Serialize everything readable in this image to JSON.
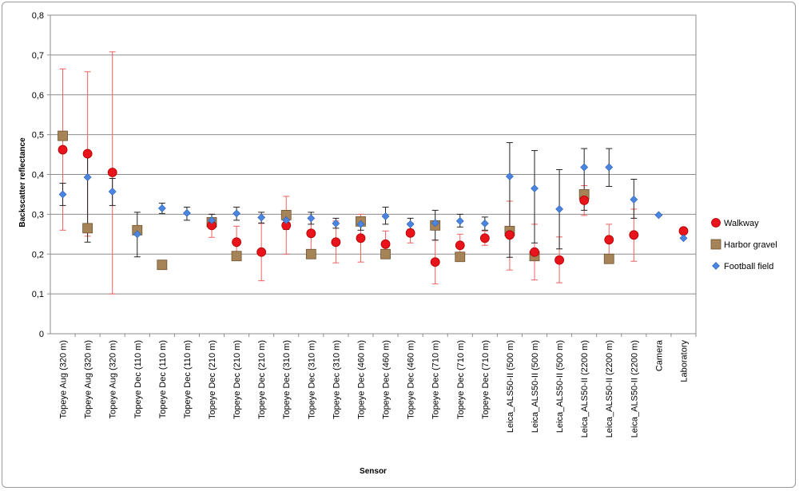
{
  "chart_data": {
    "type": "scatter",
    "xlabel": "Sensor",
    "ylabel": "Backscatter reflectance",
    "ylim": [
      0,
      0.8
    ],
    "yticks": [
      "0",
      "0,1",
      "0,2",
      "0,3",
      "0,4",
      "0,5",
      "0,6",
      "0,7",
      "0,8"
    ],
    "grid": "horizontal",
    "legend_position": "right",
    "categories": [
      "Topeye Aug (320 m)",
      "Topeye Aug (320 m)",
      "Topeye Aug (320 m)",
      "Topeye Dec (110 m)",
      "Topeye Dec (110 m)",
      "Topeye Dec (110 m)",
      "Topeye Dec (210 m)",
      "Topeye Dec (210 m)",
      "Topeye Dec (210 m)",
      "Topeye Dec (310 m)",
      "Topeye Dec (310 m)",
      "Topeye Dec (310 m)",
      "Topeye Dec (460 m)",
      "Topeye Dec (460 m)",
      "Topeye Dec (460 m)",
      "Topeye Dec (710 m)",
      "Topeye Dec (710 m)",
      "Topeye Dec (710 m)",
      "Leica_ALS50-II (500 m)",
      "Leica_ALS50-II (500 m)",
      "Leica_ALS50-II (500 m)",
      "Leica_ALS50-II (2200 m)",
      "Leica_ALS50-II (2200 m)",
      "Leica_ALS50-II (2200 m)",
      "Camera",
      "Laboratory"
    ],
    "series": [
      {
        "name": "Walkway",
        "marker": "circle",
        "color": "#e8131b",
        "error_color": "#f06060",
        "points": [
          {
            "i": 0,
            "y": 0.462,
            "lo": 0.26,
            "hi": 0.665
          },
          {
            "i": 1,
            "y": 0.452,
            "lo": 0.245,
            "hi": 0.658
          },
          {
            "i": 2,
            "y": 0.405,
            "lo": 0.1,
            "hi": 0.708
          },
          {
            "i": 6,
            "y": 0.272,
            "lo": 0.242,
            "hi": 0.3
          },
          {
            "i": 7,
            "y": 0.23,
            "lo": 0.19,
            "hi": 0.27
          },
          {
            "i": 8,
            "y": 0.205,
            "lo": 0.133,
            "hi": 0.277
          },
          {
            "i": 9,
            "y": 0.272,
            "lo": 0.2,
            "hi": 0.345
          },
          {
            "i": 10,
            "y": 0.252,
            "lo": 0.21,
            "hi": 0.29
          },
          {
            "i": 11,
            "y": 0.23,
            "lo": 0.178,
            "hi": 0.283
          },
          {
            "i": 12,
            "y": 0.24,
            "lo": 0.18,
            "hi": 0.3
          },
          {
            "i": 13,
            "y": 0.225,
            "lo": 0.195,
            "hi": 0.258
          },
          {
            "i": 14,
            "y": 0.253,
            "lo": 0.228,
            "hi": 0.278
          },
          {
            "i": 15,
            "y": 0.18,
            "lo": 0.125,
            "hi": 0.235
          },
          {
            "i": 16,
            "y": 0.222,
            "lo": 0.195,
            "hi": 0.25
          },
          {
            "i": 17,
            "y": 0.24,
            "lo": 0.222,
            "hi": 0.258
          },
          {
            "i": 18,
            "y": 0.248,
            "lo": 0.16,
            "hi": 0.333
          },
          {
            "i": 19,
            "y": 0.205,
            "lo": 0.135,
            "hi": 0.275
          },
          {
            "i": 20,
            "y": 0.185,
            "lo": 0.128,
            "hi": 0.243
          },
          {
            "i": 21,
            "y": 0.335,
            "lo": 0.297,
            "hi": 0.372
          },
          {
            "i": 22,
            "y": 0.236,
            "lo": 0.198,
            "hi": 0.275
          },
          {
            "i": 23,
            "y": 0.248,
            "lo": 0.182,
            "hi": 0.313
          },
          {
            "i": 25,
            "y": 0.258
          }
        ]
      },
      {
        "name": "Harbor gravel",
        "marker": "square",
        "color": "#a68457",
        "error_color": "#7a7a7a",
        "points": [
          {
            "i": 0,
            "y": 0.497
          },
          {
            "i": 1,
            "y": 0.265
          },
          {
            "i": 3,
            "y": 0.26
          },
          {
            "i": 4,
            "y": 0.173
          },
          {
            "i": 6,
            "y": 0.28
          },
          {
            "i": 7,
            "y": 0.195
          },
          {
            "i": 9,
            "y": 0.298
          },
          {
            "i": 10,
            "y": 0.2
          },
          {
            "i": 12,
            "y": 0.282
          },
          {
            "i": 13,
            "y": 0.2
          },
          {
            "i": 15,
            "y": 0.272
          },
          {
            "i": 16,
            "y": 0.193
          },
          {
            "i": 18,
            "y": 0.258
          },
          {
            "i": 19,
            "y": 0.195
          },
          {
            "i": 21,
            "y": 0.35
          },
          {
            "i": 22,
            "y": 0.188
          }
        ]
      },
      {
        "name": "Football field",
        "marker": "diamond",
        "color": "#4a86e0",
        "error_color": "#222222",
        "points": [
          {
            "i": 0,
            "y": 0.35,
            "lo": 0.322,
            "hi": 0.378
          },
          {
            "i": 1,
            "y": 0.393,
            "lo": 0.23,
            "hi": 0.445
          },
          {
            "i": 2,
            "y": 0.357,
            "lo": 0.322,
            "hi": 0.39
          },
          {
            "i": 3,
            "y": 0.25,
            "lo": 0.193,
            "hi": 0.305
          },
          {
            "i": 4,
            "y": 0.315,
            "lo": 0.302,
            "hi": 0.328
          },
          {
            "i": 5,
            "y": 0.303,
            "lo": 0.285,
            "hi": 0.318
          },
          {
            "i": 6,
            "y": 0.285,
            "lo": 0.27,
            "hi": 0.3
          },
          {
            "i": 7,
            "y": 0.302,
            "lo": 0.285,
            "hi": 0.318
          },
          {
            "i": 8,
            "y": 0.292,
            "lo": 0.278,
            "hi": 0.305
          },
          {
            "i": 9,
            "y": 0.285,
            "lo": 0.262,
            "hi": 0.308
          },
          {
            "i": 10,
            "y": 0.29,
            "lo": 0.275,
            "hi": 0.305
          },
          {
            "i": 11,
            "y": 0.277,
            "lo": 0.265,
            "hi": 0.29
          },
          {
            "i": 12,
            "y": 0.275,
            "lo": 0.26,
            "hi": 0.29
          },
          {
            "i": 13,
            "y": 0.295,
            "lo": 0.275,
            "hi": 0.318
          },
          {
            "i": 14,
            "y": 0.275,
            "lo": 0.262,
            "hi": 0.29
          },
          {
            "i": 15,
            "y": 0.278,
            "lo": 0.235,
            "hi": 0.31
          },
          {
            "i": 16,
            "y": 0.283,
            "lo": 0.268,
            "hi": 0.3
          },
          {
            "i": 17,
            "y": 0.277,
            "lo": 0.26,
            "hi": 0.293
          },
          {
            "i": 18,
            "y": 0.395,
            "lo": 0.192,
            "hi": 0.48
          },
          {
            "i": 19,
            "y": 0.365,
            "lo": 0.228,
            "hi": 0.46
          },
          {
            "i": 20,
            "y": 0.313,
            "lo": 0.213,
            "hi": 0.412
          },
          {
            "i": 21,
            "y": 0.418,
            "lo": 0.31,
            "hi": 0.465
          },
          {
            "i": 22,
            "y": 0.418,
            "lo": 0.37,
            "hi": 0.465
          },
          {
            "i": 23,
            "y": 0.337,
            "lo": 0.29,
            "hi": 0.388
          },
          {
            "i": 24,
            "y": 0.298
          },
          {
            "i": 25,
            "y": 0.24
          }
        ]
      }
    ]
  }
}
